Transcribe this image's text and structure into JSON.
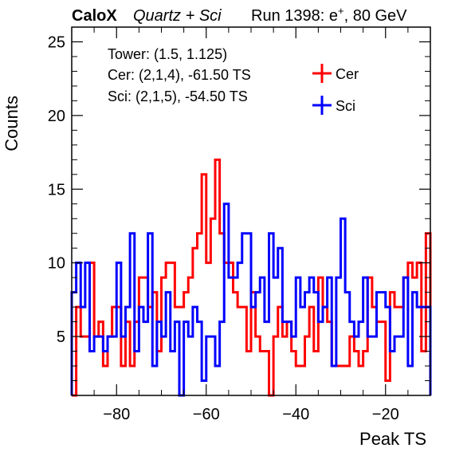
{
  "header": {
    "brand": "CaloX",
    "subtitle": "Quartz + Sci",
    "run_prefix": "Run 1398: e",
    "run_sup": "+",
    "run_suffix": ", 80 GeV"
  },
  "info": {
    "tower": "Tower: (1.5, 1.125)",
    "cer": "Cer: (2,1,4), -61.50 TS",
    "sci": "Sci: (2,1,5), -54.50 TS"
  },
  "colors": {
    "cer": "#ff0000",
    "sci": "#0000ff",
    "axis": "#000000"
  },
  "chart_data": {
    "type": "histogram",
    "xlabel": "Peak TS",
    "ylabel": "Counts",
    "xlim": [
      -90,
      -10
    ],
    "ylim": [
      1,
      26
    ],
    "bin_width": 1,
    "x_ticks": [
      -80,
      -60,
      -40,
      -20
    ],
    "y_ticks": [
      5,
      10,
      15,
      20,
      25
    ],
    "x_tick_labels": [
      "−80",
      "−60",
      "−40",
      "−20"
    ],
    "y_tick_labels": [
      "5",
      "10",
      "15",
      "20",
      "25"
    ],
    "grid": false,
    "legend": "top-right",
    "series": [
      {
        "name": "Cer",
        "color": "#ff0000",
        "bin_edges_start": -90,
        "values": [
          1,
          7,
          5,
          5,
          10,
          5,
          6,
          3,
          5,
          7,
          7,
          3,
          6,
          3,
          6,
          9,
          9,
          7,
          8,
          4,
          9,
          10,
          10,
          7,
          7,
          8,
          9,
          11,
          12,
          16,
          10,
          13,
          17,
          12,
          10,
          10,
          8,
          7,
          7,
          4,
          8,
          5,
          4,
          4,
          1,
          5,
          7,
          5,
          6,
          4,
          3,
          3,
          5,
          7,
          4,
          9,
          7,
          6,
          3,
          3,
          3,
          3,
          5,
          4,
          3,
          4,
          9,
          7,
          6,
          6,
          2,
          8,
          7,
          7,
          9,
          10,
          9,
          10,
          4,
          12
        ]
      },
      {
        "name": "Sci",
        "color": "#0000ff",
        "bin_edges_start": -90,
        "values": [
          8,
          10,
          7,
          10,
          4,
          5,
          5,
          4,
          5,
          5,
          10,
          5,
          7,
          12,
          4,
          7,
          6,
          12,
          3,
          6,
          5,
          8,
          4,
          6,
          1,
          6,
          5,
          7,
          6,
          2,
          5,
          5,
          3,
          6,
          14,
          9,
          9,
          10,
          12,
          12,
          7,
          8,
          9,
          6,
          12,
          9,
          11,
          6,
          6,
          5,
          9,
          7,
          8,
          9,
          8,
          6,
          7,
          9,
          3,
          9,
          13,
          8,
          6,
          5,
          6,
          9,
          5,
          5,
          8,
          8,
          7,
          4,
          5,
          5,
          9,
          3,
          8,
          7,
          7,
          7
        ]
      }
    ]
  }
}
